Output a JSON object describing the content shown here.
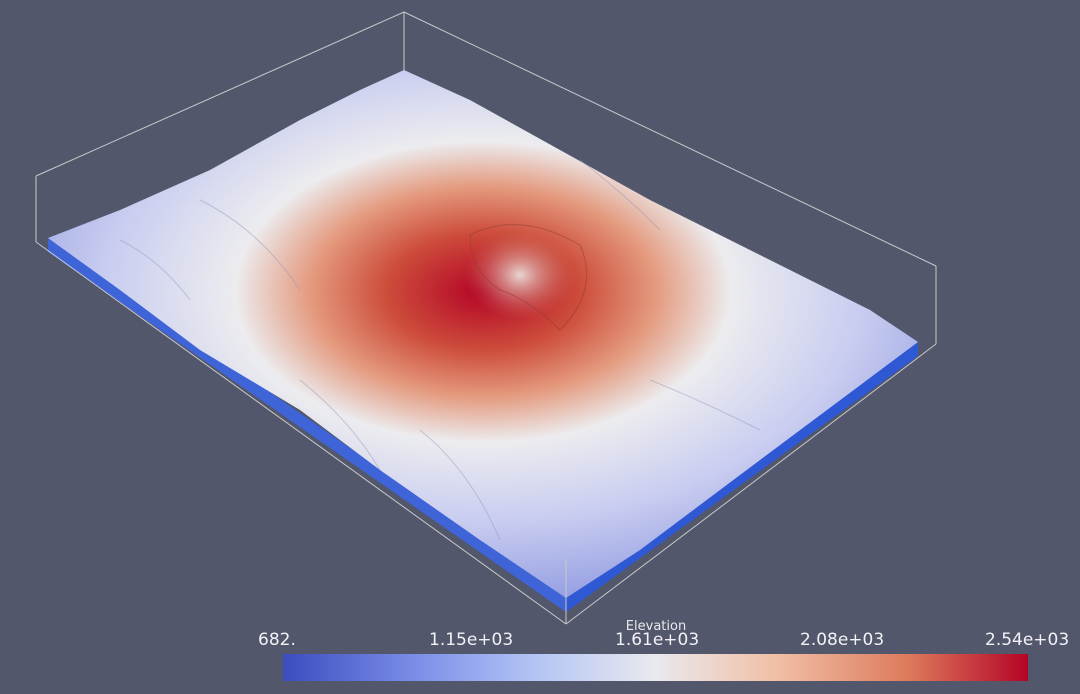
{
  "colormap": {
    "title": "Elevation",
    "ticks": [
      "682.",
      "1.15e+03",
      "1.61e+03",
      "2.08e+03",
      "2.54e+03"
    ],
    "low_color": "#3b4cc0",
    "mid_color": "#e9e9ee",
    "high_color": "#b40426"
  },
  "background_color": "#52576b",
  "outline_color": "#c9c9c9"
}
